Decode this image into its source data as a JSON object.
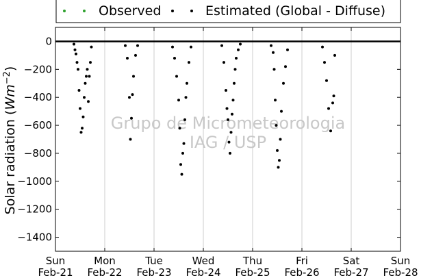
{
  "chart_data": {
    "type": "scatter",
    "ylabel": "Solar radiation (Wm⁻²)",
    "ylabel_parts": {
      "base": "Solar radiation (",
      "unit": "Wm",
      "exp": "−2",
      "close": ")"
    },
    "ylim": [
      -1500,
      100
    ],
    "yticks": [
      0,
      -200,
      -400,
      -600,
      -800,
      -1000,
      -1200,
      -1400
    ],
    "xlim": [
      "2021-02-21",
      "2021-02-28"
    ],
    "xticks": [
      {
        "day": "Sun",
        "date": "Feb-21"
      },
      {
        "day": "Mon",
        "date": "Feb-22"
      },
      {
        "day": "Tue",
        "date": "Feb-23"
      },
      {
        "day": "Wed",
        "date": "Feb-24"
      },
      {
        "day": "Thu",
        "date": "Feb-25"
      },
      {
        "day": "Fri",
        "date": "Feb-26"
      },
      {
        "day": "Sat",
        "date": "Feb-27"
      },
      {
        "day": "Sun",
        "date": "Feb-28"
      }
    ],
    "grid": "vertical",
    "legend_position": "top",
    "watermark": [
      "Grupo de Micrometeorologia",
      "IAG / USP"
    ],
    "series": [
      {
        "name": "Observed",
        "color": "#2ca02c",
        "x": [],
        "y": []
      },
      {
        "name": "Estimated (Global - Diffuse)",
        "color": "#000000",
        "x": [
          "2021-02-21 09:00",
          "2021-02-21 09:30",
          "2021-02-21 10:00",
          "2021-02-21 10:30",
          "2021-02-21 11:00",
          "2021-02-21 11:30",
          "2021-02-21 12:00",
          "2021-02-21 12:30",
          "2021-02-21 13:00",
          "2021-02-21 13:30",
          "2021-02-21 14:00",
          "2021-02-21 14:30",
          "2021-02-21 15:00",
          "2021-02-21 15:30",
          "2021-02-21 16:00",
          "2021-02-21 16:30",
          "2021-02-21 17:00",
          "2021-02-21 17:30",
          "2021-02-22 10:00",
          "2021-02-22 11:00",
          "2021-02-22 12:00",
          "2021-02-22 12:30",
          "2021-02-22 13:00",
          "2021-02-22 13:30",
          "2021-02-22 14:00",
          "2021-02-22 15:00",
          "2021-02-22 16:00",
          "2021-02-23 09:00",
          "2021-02-23 10:00",
          "2021-02-23 11:00",
          "2021-02-23 12:00",
          "2021-02-23 12:30",
          "2021-02-23 13:00",
          "2021-02-23 13:30",
          "2021-02-23 14:00",
          "2021-02-23 14:30",
          "2021-02-23 15:00",
          "2021-02-23 15:30",
          "2021-02-23 16:00",
          "2021-02-23 17:00",
          "2021-02-23 18:00",
          "2021-02-24 09:00",
          "2021-02-24 10:00",
          "2021-02-24 11:00",
          "2021-02-24 11:30",
          "2021-02-24 12:00",
          "2021-02-24 12:30",
          "2021-02-24 13:00",
          "2021-02-24 13:30",
          "2021-02-24 14:00",
          "2021-02-24 14:30",
          "2021-02-24 15:00",
          "2021-02-24 15:30",
          "2021-02-24 16:00",
          "2021-02-24 17:00",
          "2021-02-24 18:00",
          "2021-02-25 09:00",
          "2021-02-25 10:00",
          "2021-02-25 10:30",
          "2021-02-25 11:00",
          "2021-02-25 11:30",
          "2021-02-25 12:00",
          "2021-02-25 12:30",
          "2021-02-25 13:00",
          "2021-02-25 13:30",
          "2021-02-25 14:00",
          "2021-02-25 15:00",
          "2021-02-25 16:00",
          "2021-02-25 17:00",
          "2021-02-26 10:00",
          "2021-02-26 11:00",
          "2021-02-26 12:00",
          "2021-02-26 13:00",
          "2021-02-26 14:00",
          "2021-02-26 15:00",
          "2021-02-26 15:30",
          "2021-02-26 16:00"
        ],
        "y": [
          -20,
          -60,
          -90,
          -150,
          -200,
          -350,
          -480,
          -650,
          -620,
          -540,
          -400,
          -300,
          -250,
          -200,
          -430,
          -250,
          -150,
          -40,
          -30,
          -120,
          -400,
          -700,
          -550,
          -380,
          -250,
          -100,
          -30,
          -40,
          -120,
          -250,
          -420,
          -620,
          -880,
          -950,
          -800,
          -730,
          -560,
          -400,
          -300,
          -150,
          -40,
          -30,
          -150,
          -350,
          -480,
          -560,
          -720,
          -800,
          -650,
          -520,
          -420,
          -300,
          -200,
          -120,
          -60,
          -20,
          -30,
          -80,
          -200,
          -420,
          -600,
          -780,
          -900,
          -850,
          -700,
          -500,
          -300,
          -180,
          -60,
          -40,
          -150,
          -280,
          -480,
          -640,
          -440,
          -390,
          -100
        ]
      }
    ]
  }
}
